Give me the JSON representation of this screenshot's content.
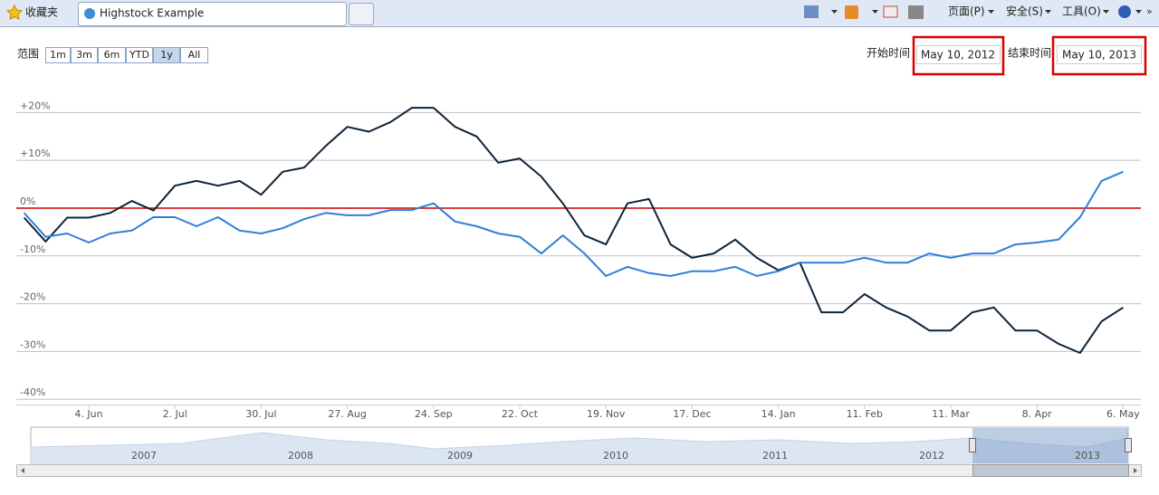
{
  "browser": {
    "favorites": "收藏夹",
    "tab_title": "Highstock Example",
    "menus": [
      "页面(P)",
      "安全(S)",
      "工具(O)"
    ]
  },
  "range_selector": {
    "label": "范围",
    "buttons": [
      "1m",
      "3m",
      "6m",
      "YTD",
      "1y",
      "All"
    ],
    "selected": 4,
    "from_label": "开始时间",
    "from": "May 10, 2012",
    "to_label": "结束时间",
    "to": "May 10, 2013"
  },
  "chart_data": {
    "type": "line",
    "categories": [
      null,
      null,
      null,
      "4. Jun",
      null,
      null,
      null,
      "2. Jul",
      null,
      null,
      null,
      "30. Jul",
      null,
      null,
      null,
      "27. Aug",
      null,
      null,
      null,
      "24. Sep",
      null,
      null,
      null,
      "22. Oct",
      null,
      null,
      null,
      "19. Nov",
      null,
      null,
      null,
      "17. Dec",
      null,
      null,
      null,
      "14. Jan",
      null,
      null,
      null,
      "11. Feb",
      null,
      null,
      null,
      "11. Mar",
      null,
      null,
      null,
      "8. Apr",
      null,
      null,
      null,
      "6. May"
    ],
    "series": [
      {
        "color": "#0d233a",
        "values": [
          -2,
          -7,
          -2,
          -2,
          -1,
          1.5,
          -0.5,
          4.7,
          5.7,
          4.7,
          5.7,
          2.8,
          7.6,
          8.5,
          13,
          17,
          16,
          18,
          21,
          21,
          17,
          15,
          9.5,
          10.4,
          6.6,
          1,
          -5.7,
          -7.6,
          1,
          1.9,
          -7.6,
          -10.4,
          -9.5,
          -6.6,
          -10.4,
          -13,
          -11.4,
          -21.8,
          -21.8,
          -18,
          -20.8,
          -22.7,
          -25.6,
          -25.6,
          -21.8,
          -20.8,
          -25.6,
          -25.6,
          -28.4,
          -30.3,
          -23.7,
          -20.8
        ]
      },
      {
        "color": "#2f7ed8",
        "values": [
          -1,
          -6,
          -5.3,
          -7.2,
          -5.3,
          -4.7,
          -1.9,
          -1.9,
          -3.8,
          -1.9,
          -4.7,
          -5.3,
          -4.2,
          -2.3,
          -1,
          -1.5,
          -1.5,
          -0.4,
          -0.4,
          1,
          -2.8,
          -3.8,
          -5.3,
          -6,
          -9.5,
          -5.7,
          -9.5,
          -14.2,
          -12.3,
          -13.6,
          -14.2,
          -13.2,
          -13.2,
          -12.3,
          -14.2,
          -13.2,
          -11.4,
          -11.4,
          -11.4,
          -10.4,
          -11.4,
          -11.4,
          -9.5,
          -10.4,
          -9.5,
          -9.5,
          -7.6,
          -7.2,
          -6.6,
          -1.9,
          5.7,
          7.6
        ]
      }
    ],
    "ylim": [
      -40,
      27
    ],
    "yticks": [
      {
        "value": -40,
        "label": "-40%"
      },
      {
        "value": -30,
        "label": "-30%"
      },
      {
        "value": -20,
        "label": "-20%"
      },
      {
        "value": -10,
        "label": "-10%"
      },
      {
        "value": 0,
        "label": "0%"
      },
      {
        "value": 10,
        "label": "+10%"
      },
      {
        "value": 20,
        "label": "+20%"
      }
    ],
    "grid": true,
    "plot_line": {
      "value": 0,
      "color": "#cc0000"
    }
  },
  "navigator": {
    "years": [
      "2007",
      "2008",
      "2009",
      "2010",
      "2011",
      "2012",
      "2013"
    ]
  }
}
